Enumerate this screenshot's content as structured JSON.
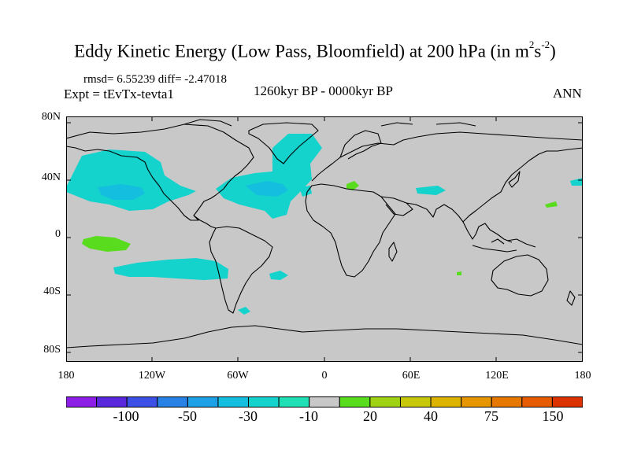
{
  "title_main": "Eddy Kinetic Energy (Low Pass, Bloomfield) at 200 hPa (in m",
  "title_sup1": "2",
  "title_mid": "s",
  "title_sup2": "-2",
  "title_end": ")",
  "stats_line": "rmsd= 6.55239 diff= -2.47018",
  "experiment": "Expt = tEvTx-tevta1",
  "period": "1260kyr BP - 0000kyr BP",
  "season": "ANN",
  "lat_labels": [
    "80N",
    "40N",
    "0",
    "40S",
    "80S"
  ],
  "lon_labels": [
    "180",
    "120W",
    "60W",
    "0",
    "60E",
    "120E",
    "180"
  ],
  "colorbar": {
    "colors": [
      "#8c1ee6",
      "#5a28dc",
      "#3c50e6",
      "#2882e6",
      "#1ea0e6",
      "#14bede",
      "#14d2cc",
      "#1ee0b4",
      "#c8c8c8",
      "#5adc1e",
      "#a0d214",
      "#c8c80a",
      "#dcb400",
      "#e69600",
      "#e67800",
      "#e65a00",
      "#dc3200"
    ],
    "labels": [
      "-100",
      "-50",
      "-30",
      "-10",
      "20",
      "40",
      "75",
      "150"
    ]
  },
  "map_colors": {
    "ocean_land": "#c8c8c8",
    "neg_light": "#14d2cc",
    "neg_mid": "#14bede",
    "pos_light": "#5adc1e",
    "coast": "#000000"
  }
}
